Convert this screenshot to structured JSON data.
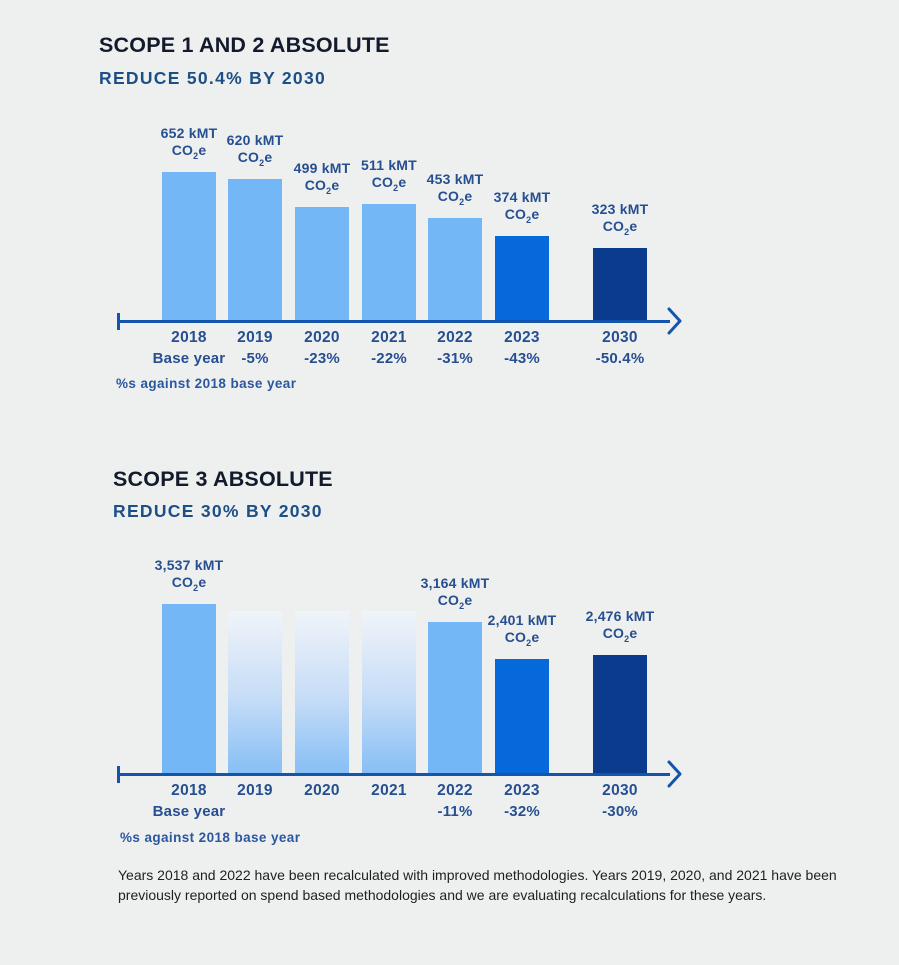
{
  "page": {
    "background": "#eef0ef"
  },
  "colors": {
    "background": "#eef0ef",
    "title": "#131a2c",
    "subtitle": "#1d4f87",
    "bar_light_blue": "#73b7f6",
    "bar_medium_blue": "#0569dc",
    "bar_dark_navy": "#0b3b8d",
    "axis": "#1355ac",
    "label_navy": "#264f91",
    "footnote": "#2b579f",
    "footer_text": "#1f1f1f"
  },
  "units": {
    "co": "CO",
    "sub": "2",
    "e": "e"
  },
  "chart_data": [
    {
      "type": "bar",
      "title": "SCOPE 1 AND 2 ABSOLUTE",
      "subtitle": "REDUCE 50.4% BY 2030",
      "footnote": "%s against 2018 base year",
      "ylabel": "kMT CO2e",
      "yaxis_shown": false,
      "grid": false,
      "categories": [
        "2018",
        "2019",
        "2020",
        "2021",
        "2022",
        "2023",
        "2030"
      ],
      "values": [
        652,
        620,
        499,
        511,
        453,
        374,
        323
      ],
      "bars": [
        {
          "year": "2018",
          "caption": "Base year",
          "value": 652,
          "amount_label": "652 kMT",
          "style": "light"
        },
        {
          "year": "2019",
          "caption": "-5%",
          "value": 620,
          "amount_label": "620 kMT",
          "style": "light"
        },
        {
          "year": "2020",
          "caption": "-23%",
          "value": 499,
          "amount_label": "499 kMT",
          "style": "light"
        },
        {
          "year": "2021",
          "caption": "-22%",
          "value": 511,
          "amount_label": "511 kMT",
          "style": "light"
        },
        {
          "year": "2022",
          "caption": "-31%",
          "value": 453,
          "amount_label": "453 kMT",
          "style": "light"
        },
        {
          "year": "2023",
          "caption": "-43%",
          "value": 374,
          "amount_label": "374 kMT",
          "style": "medium"
        },
        {
          "year": "2030",
          "caption": "-50.4%",
          "value": 323,
          "amount_label": "323 kMT",
          "style": "dark"
        }
      ]
    },
    {
      "type": "bar",
      "title": "SCOPE 3 ABSOLUTE",
      "subtitle": "REDUCE 30% BY 2030",
      "footnote": "%s against 2018 base year",
      "ylabel": "kMT CO2e",
      "yaxis_shown": false,
      "grid": false,
      "categories": [
        "2018",
        "2019",
        "2020",
        "2021",
        "2022",
        "2023",
        "2030"
      ],
      "values": [
        3537,
        null,
        null,
        null,
        3164,
        2401,
        2476
      ],
      "bars": [
        {
          "year": "2018",
          "caption": "Base year",
          "value": 3537,
          "amount_label": "3,537 kMT",
          "style": "light"
        },
        {
          "year": "2019",
          "caption": "",
          "value": null,
          "display_ratio": 0.96,
          "amount_label": "",
          "style": "gradient"
        },
        {
          "year": "2020",
          "caption": "",
          "value": null,
          "display_ratio": 0.96,
          "amount_label": "",
          "style": "gradient"
        },
        {
          "year": "2021",
          "caption": "",
          "value": null,
          "display_ratio": 0.96,
          "amount_label": "",
          "style": "gradient"
        },
        {
          "year": "2022",
          "caption": "-11%",
          "value": 3164,
          "amount_label": "3,164 kMT",
          "style": "light"
        },
        {
          "year": "2023",
          "caption": "-32%",
          "value": 2401,
          "amount_label": "2,401 kMT",
          "style": "medium"
        },
        {
          "year": "2030",
          "caption": "-30%",
          "value": 2476,
          "amount_label": "2,476 kMT",
          "style": "dark"
        }
      ]
    }
  ],
  "footer": {
    "text": "Years 2018 and 2022 have been recalculated with improved methodologies. Years 2019, 2020, and 2021 have been previously reported on spend based methodologies and we are evaluating recalculations for these years."
  }
}
